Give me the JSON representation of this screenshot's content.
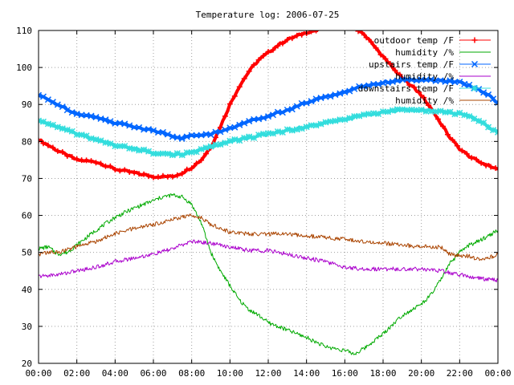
{
  "chart_data": {
    "type": "line",
    "title": "Temperature log: 2006-07-25",
    "xlabel": "",
    "ylabel": "",
    "xlim": [
      "00:00",
      "24:00"
    ],
    "ylim": [
      20,
      110
    ],
    "grid": true,
    "legend_position": "top-right",
    "x_ticks": [
      "00:00",
      "02:00",
      "04:00",
      "06:00",
      "08:00",
      "10:00",
      "12:00",
      "14:00",
      "16:00",
      "18:00",
      "20:00",
      "22:00",
      "00:00"
    ],
    "y_ticks": [
      20,
      30,
      40,
      50,
      60,
      70,
      80,
      90,
      100,
      110
    ],
    "series": [
      {
        "name": "outdoor temp /F",
        "color": "#ff0000",
        "style": "thick-plus",
        "x": [
          0,
          1,
          2,
          3,
          4,
          5,
          6,
          6.5,
          7,
          7.5,
          8,
          8.5,
          9,
          9.5,
          10,
          10.5,
          11,
          11.5,
          12,
          12.5,
          13,
          13.5,
          14,
          14.5,
          14.6
        ],
        "y": [
          80.5,
          77.5,
          75,
          74.5,
          72.5,
          71.5,
          70.5,
          70.5,
          70.5,
          71.5,
          73,
          75,
          78.5,
          84,
          90,
          95,
          99,
          102,
          104,
          106,
          107.5,
          108.5,
          109.5,
          110,
          110
        ],
        "x2": [
          16.7,
          17,
          17.5,
          18,
          18.5,
          19,
          19.5,
          20,
          20.5,
          21,
          21.5,
          22,
          22.5,
          23,
          23.5,
          24
        ],
        "y2": [
          110,
          109,
          106,
          103,
          100,
          97,
          95,
          92.5,
          89,
          85,
          81,
          78,
          76,
          74.5,
          73.5,
          72.5
        ]
      },
      {
        "name": "humidity /%",
        "color": "#00aa00",
        "style": "thin",
        "x": [
          0,
          0.5,
          1,
          1.5,
          2,
          3,
          4,
          5,
          6,
          6.5,
          7,
          7.5,
          8,
          8.5,
          9,
          9.5,
          10,
          10.5,
          11,
          11.5,
          12,
          13,
          14,
          15,
          16,
          16.5,
          17,
          17.5,
          18,
          19,
          20,
          20.5,
          21,
          21.5,
          22,
          22.5,
          23,
          23.5,
          24
        ],
        "y": [
          51,
          51.5,
          49.5,
          50,
          52,
          56,
          59.5,
          62,
          64,
          65,
          65.5,
          65,
          63,
          58,
          50,
          45,
          41,
          37,
          34.5,
          33,
          31,
          29,
          27,
          24.5,
          23.5,
          22.5,
          24,
          26,
          28,
          33,
          36,
          38.5,
          42.5,
          47,
          50,
          52,
          53,
          54.5,
          56
        ]
      },
      {
        "name": "upstairs temp /F",
        "color": "#0066ff",
        "style": "thick-x",
        "x": [
          0,
          1,
          2,
          3,
          4,
          5,
          6,
          7,
          7.5,
          8,
          9,
          10,
          11,
          12,
          13,
          14,
          15,
          16,
          17,
          18,
          19,
          20,
          21,
          22,
          22.5,
          23,
          23.5,
          24
        ],
        "y": [
          92.5,
          90,
          87.5,
          86.5,
          85,
          84,
          83,
          81.5,
          81,
          81.5,
          82,
          83.5,
          85.5,
          87,
          88.5,
          90.5,
          92,
          93.5,
          95,
          96,
          96.5,
          96.5,
          96.5,
          96,
          95,
          94,
          92.5,
          90.5
        ]
      },
      {
        "name": "humidity /%",
        "color": "#aa00cc",
        "style": "thin",
        "x": [
          0,
          1,
          2,
          3,
          4,
          5,
          6,
          7,
          8,
          9,
          10,
          11,
          12,
          13,
          14,
          15,
          16,
          17,
          18,
          19,
          20,
          21,
          22,
          23,
          24
        ],
        "y": [
          43.5,
          44,
          45,
          46,
          47.5,
          48.5,
          49.5,
          51,
          53,
          52.5,
          51.5,
          50.5,
          50.5,
          49.5,
          48.5,
          47.5,
          46,
          45.5,
          45.5,
          45.5,
          45.5,
          45,
          44,
          43,
          42.5
        ]
      },
      {
        "name": "downstairs temp /F",
        "color": "#33dddd",
        "style": "thick-star",
        "x": [
          0,
          1,
          2,
          3,
          4,
          5,
          6,
          7,
          7.5,
          8,
          9,
          10,
          11,
          12,
          13,
          14,
          15,
          16,
          17,
          18,
          19,
          20,
          21,
          22,
          22.5,
          23,
          23.5,
          24
        ],
        "y": [
          85.5,
          84,
          82,
          80.5,
          79,
          78,
          77,
          76.5,
          76.5,
          77,
          78.5,
          80,
          81,
          82,
          83,
          84,
          85,
          86,
          87,
          88,
          88.5,
          88.5,
          88,
          87.5,
          87,
          85.5,
          84,
          82.5
        ]
      },
      {
        "name": "humidity /%",
        "color": "#aa4400",
        "style": "thin",
        "x": [
          0,
          0.5,
          1,
          2,
          3,
          4,
          5,
          6,
          7,
          8,
          8.5,
          9,
          10,
          11,
          12,
          13,
          14,
          15,
          16,
          17,
          18,
          19,
          20,
          21,
          21.5,
          22,
          22.5,
          23,
          23.5,
          24
        ],
        "y": [
          49.5,
          50,
          50,
          51.5,
          53,
          55,
          56.5,
          57.5,
          59,
          60,
          59.5,
          57.5,
          55.5,
          55,
          55,
          55,
          54.5,
          54,
          53.5,
          53,
          52.5,
          52,
          51.5,
          51.5,
          49.5,
          49,
          49,
          48,
          48.5,
          49.5
        ]
      }
    ]
  }
}
